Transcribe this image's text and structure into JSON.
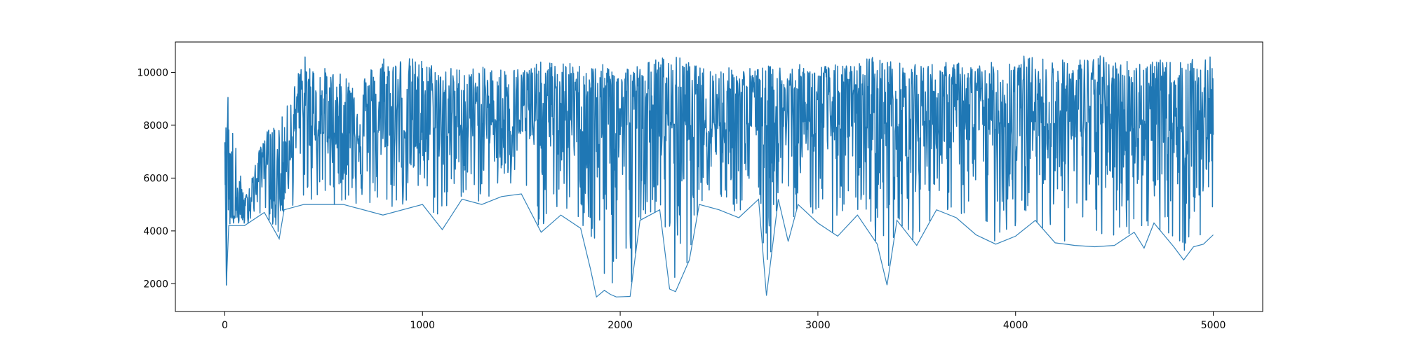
{
  "chart_data": {
    "type": "line",
    "title": "",
    "xlabel": "",
    "ylabel": "",
    "xlim": [
      -250,
      5250
    ],
    "ylim": [
      950,
      11150
    ],
    "x_ticks": [
      0,
      1000,
      2000,
      3000,
      4000,
      5000
    ],
    "y_ticks": [
      2000,
      4000,
      6000,
      8000,
      10000
    ],
    "x_tick_labels": [
      "0",
      "1000",
      "2000",
      "3000",
      "4000",
      "5000"
    ],
    "y_tick_labels": [
      "2000",
      "4000",
      "6000",
      "8000",
      "10000"
    ],
    "grid": false,
    "series": [
      {
        "color": "#1f77b4",
        "points": [
          [
            0,
            7400
          ],
          [
            5,
            7300
          ],
          [
            8,
            1950
          ],
          [
            12,
            8000
          ],
          [
            16,
            9050
          ],
          [
            20,
            6000
          ],
          [
            25,
            4500
          ],
          [
            40,
            4600
          ],
          [
            60,
            4500
          ],
          [
            80,
            4700
          ],
          [
            100,
            4600
          ],
          [
            120,
            5100
          ],
          [
            140,
            5400
          ],
          [
            160,
            5600
          ],
          [
            180,
            6500
          ],
          [
            200,
            7000
          ],
          [
            220,
            6400
          ],
          [
            240,
            5600
          ],
          [
            260,
            4900
          ],
          [
            280,
            5300
          ],
          [
            300,
            5600
          ],
          [
            320,
            7600
          ],
          [
            340,
            7200
          ],
          [
            360,
            8400
          ],
          [
            380,
            8700
          ],
          [
            400,
            8200
          ],
          [
            450,
            8000
          ],
          [
            500,
            7700
          ],
          [
            600,
            7700
          ],
          [
            700,
            7800
          ],
          [
            800,
            7800
          ],
          [
            900,
            7800
          ],
          [
            1000,
            7900
          ],
          [
            1200,
            8000
          ],
          [
            1400,
            8200
          ],
          [
            1600,
            8200
          ],
          [
            1800,
            8200
          ],
          [
            2000,
            8100
          ],
          [
            2200,
            8100
          ],
          [
            2400,
            8200
          ],
          [
            2600,
            8100
          ],
          [
            2800,
            8100
          ],
          [
            3000,
            8200
          ],
          [
            3200,
            8100
          ],
          [
            3400,
            8100
          ],
          [
            3600,
            8200
          ],
          [
            3800,
            8100
          ],
          [
            4000,
            8100
          ],
          [
            4200,
            8200
          ],
          [
            4400,
            8100
          ],
          [
            4600,
            8100
          ],
          [
            4800,
            8000
          ],
          [
            5000,
            7900
          ]
        ],
        "min_envelope": [
          [
            0,
            7000
          ],
          [
            8,
            1950
          ],
          [
            20,
            4200
          ],
          [
            100,
            4200
          ],
          [
            200,
            4700
          ],
          [
            275,
            3700
          ],
          [
            300,
            4800
          ],
          [
            400,
            5000
          ],
          [
            600,
            5000
          ],
          [
            800,
            4600
          ],
          [
            1000,
            5000
          ],
          [
            1100,
            4050
          ],
          [
            1200,
            5200
          ],
          [
            1300,
            5000
          ],
          [
            1400,
            5300
          ],
          [
            1500,
            5400
          ],
          [
            1600,
            3950
          ],
          [
            1700,
            4600
          ],
          [
            1800,
            4100
          ],
          [
            1850,
            2550
          ],
          [
            1880,
            1500
          ],
          [
            1920,
            1750
          ],
          [
            1950,
            1600
          ],
          [
            1980,
            1500
          ],
          [
            2050,
            1520
          ],
          [
            2100,
            4400
          ],
          [
            2200,
            4800
          ],
          [
            2250,
            1800
          ],
          [
            2280,
            1700
          ],
          [
            2350,
            2900
          ],
          [
            2400,
            5000
          ],
          [
            2500,
            4800
          ],
          [
            2600,
            4500
          ],
          [
            2700,
            5200
          ],
          [
            2740,
            1550
          ],
          [
            2800,
            5200
          ],
          [
            2850,
            3600
          ],
          [
            2900,
            5000
          ],
          [
            3000,
            4300
          ],
          [
            3100,
            3800
          ],
          [
            3200,
            4600
          ],
          [
            3300,
            3500
          ],
          [
            3350,
            1950
          ],
          [
            3400,
            4400
          ],
          [
            3500,
            3450
          ],
          [
            3600,
            4800
          ],
          [
            3700,
            4500
          ],
          [
            3800,
            3850
          ],
          [
            3900,
            3500
          ],
          [
            4000,
            3800
          ],
          [
            4100,
            4400
          ],
          [
            4200,
            3550
          ],
          [
            4300,
            3450
          ],
          [
            4400,
            3400
          ],
          [
            4500,
            3450
          ],
          [
            4600,
            3950
          ],
          [
            4650,
            3350
          ],
          [
            4700,
            4300
          ],
          [
            4800,
            3400
          ],
          [
            4850,
            2900
          ],
          [
            4900,
            3400
          ],
          [
            4950,
            3500
          ],
          [
            5000,
            3850
          ]
        ],
        "max_envelope": [
          [
            0,
            7500
          ],
          [
            16,
            9050
          ],
          [
            100,
            5200
          ],
          [
            200,
            7700
          ],
          [
            300,
            8400
          ],
          [
            350,
            9500
          ],
          [
            400,
            10700
          ],
          [
            450,
            10200
          ],
          [
            500,
            10200
          ],
          [
            600,
            9900
          ],
          [
            700,
            9900
          ],
          [
            800,
            10700
          ],
          [
            900,
            10600
          ],
          [
            1000,
            10500
          ],
          [
            1100,
            10200
          ],
          [
            1200,
            10200
          ],
          [
            1300,
            10200
          ],
          [
            1400,
            10200
          ],
          [
            1500,
            10200
          ],
          [
            1600,
            10400
          ],
          [
            1700,
            10400
          ],
          [
            1800,
            10300
          ],
          [
            1900,
            10300
          ],
          [
            2000,
            10300
          ],
          [
            2100,
            10300
          ],
          [
            2200,
            10600
          ],
          [
            2300,
            10600
          ],
          [
            2400,
            10200
          ],
          [
            2500,
            10200
          ],
          [
            2600,
            10200
          ],
          [
            2700,
            10200
          ],
          [
            2800,
            10300
          ],
          [
            2900,
            10300
          ],
          [
            3000,
            10300
          ],
          [
            3100,
            10300
          ],
          [
            3200,
            10300
          ],
          [
            3250,
            10700
          ],
          [
            3300,
            10600
          ],
          [
            3400,
            10400
          ],
          [
            3500,
            10300
          ],
          [
            3600,
            10400
          ],
          [
            3700,
            10400
          ],
          [
            3800,
            10300
          ],
          [
            3900,
            10400
          ],
          [
            4000,
            10700
          ],
          [
            4100,
            10600
          ],
          [
            4200,
            10500
          ],
          [
            4300,
            10500
          ],
          [
            4400,
            10700
          ],
          [
            4500,
            10500
          ],
          [
            4600,
            10500
          ],
          [
            4700,
            10500
          ],
          [
            4800,
            10400
          ],
          [
            4900,
            10500
          ],
          [
            5000,
            10600
          ]
        ]
      }
    ]
  }
}
